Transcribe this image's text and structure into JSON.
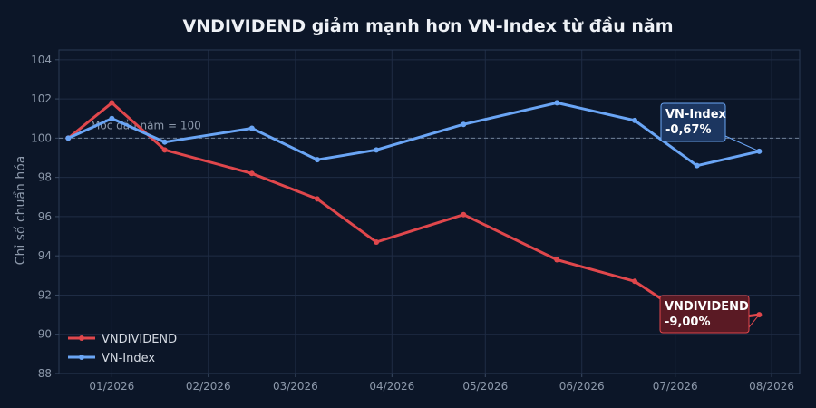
{
  "chart_data": {
    "type": "line",
    "title": "VNDIVIDEND giảm mạnh hơn VN-Index từ đầu năm",
    "xlabel": "",
    "ylabel": "Chỉ số chuẩn hóa",
    "ylim": [
      88,
      104.5
    ],
    "yticks": [
      88,
      90,
      92,
      94,
      96,
      98,
      100,
      102,
      104
    ],
    "xticks": [
      "01/2026",
      "02/2026",
      "03/2026",
      "04/2026",
      "05/2026",
      "06/2026",
      "07/2026",
      "08/2026"
    ],
    "x": [
      "2026-01-15",
      "2026-02-01",
      "2026-02-15",
      "2026-03-01",
      "2026-03-15",
      "2026-04-01",
      "2026-04-15",
      "2026-05-01",
      "2026-05-15",
      "2026-06-01",
      "2026-06-15",
      "2026-07-01",
      "2026-07-15",
      "2026-08-01",
      "2026-08-15"
    ],
    "grid": true,
    "legend_position": "bottom-left",
    "reference_line": {
      "value": 100,
      "label": "Mốc đầu năm = 100"
    },
    "series": [
      {
        "name": "VNDIVIDEND",
        "color": "#e0474c",
        "x": [
          "2026-01-01",
          "2026-01-15",
          "2026-02-01",
          "2026-03-01",
          "2026-03-22",
          "2026-04-10",
          "2026-05-08",
          "2026-06-07",
          "2026-07-02",
          "2026-07-22",
          "2026-08-11"
        ],
        "values": [
          100.0,
          101.8,
          99.4,
          98.2,
          96.9,
          94.7,
          96.1,
          93.8,
          92.7,
          90.6,
          91.0
        ]
      },
      {
        "name": "VN-Index",
        "color": "#6aa5f5",
        "x": [
          "2026-01-01",
          "2026-01-15",
          "2026-02-01",
          "2026-03-01",
          "2026-03-22",
          "2026-04-10",
          "2026-05-08",
          "2026-06-07",
          "2026-07-02",
          "2026-07-22",
          "2026-08-11"
        ],
        "values": [
          100.0,
          101.0,
          99.8,
          100.5,
          98.9,
          99.4,
          100.7,
          101.8,
          100.9,
          98.6,
          99.33
        ]
      }
    ],
    "annotations": [
      {
        "series": "VN-Index",
        "line1": "VN-Index",
        "line2": "-0,67%",
        "color": "#6aa5f5",
        "fill": "#1c3660"
      },
      {
        "series": "VNDIVIDEND",
        "line1": "VNDIVIDEND",
        "line2": "-9,00%",
        "color": "#e0474c",
        "fill": "#5a1a24"
      }
    ]
  }
}
